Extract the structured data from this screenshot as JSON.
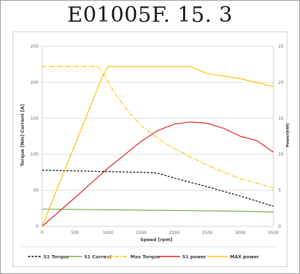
{
  "chart_data": {
    "type": "line",
    "title": "E01005F. 15. 3",
    "xlabel": "Speed  [rpm]",
    "ylabel_left": "Torque  [Nm] Current  [A]",
    "ylabel_right": "Power[kW]",
    "xlim": [
      0,
      3500
    ],
    "ylim_left": [
      0,
      250
    ],
    "ylim_right": [
      0,
      25
    ],
    "x_ticks": [
      0,
      500,
      1000,
      1500,
      2000,
      2500,
      3000,
      3500
    ],
    "y_left_ticks": [
      0,
      50,
      100,
      150,
      200,
      250
    ],
    "y_right_ticks": [
      0,
      5,
      10,
      15,
      20,
      25
    ],
    "grid": "horizontal",
    "legend_position": "bottom",
    "series": [
      {
        "name": "S1 Torque",
        "axis": "left",
        "color": "#000000",
        "style": "dashed",
        "x": [
          0,
          500,
          1000,
          1500,
          1750,
          2000,
          2500,
          3000,
          3500
        ],
        "y": [
          78,
          77,
          76,
          75,
          74,
          67,
          55,
          42,
          28
        ]
      },
      {
        "name": "S1 Current",
        "axis": "left",
        "color": "#70ad47",
        "style": "solid",
        "x": [
          0,
          500,
          1000,
          1500,
          2000,
          2500,
          3000,
          3500
        ],
        "y": [
          24,
          23.5,
          23,
          22.5,
          22,
          21.5,
          21,
          20
        ]
      },
      {
        "name": "Max Torque",
        "axis": "left",
        "color": "#ffc000",
        "style": "dashdot",
        "x": [
          0,
          850,
          950,
          1100,
          1300,
          1500,
          1750,
          2000,
          2250,
          2500,
          2750,
          3000,
          3250,
          3500
        ],
        "y": [
          222,
          222,
          208,
          185,
          160,
          140,
          122,
          108,
          96,
          85,
          75,
          66,
          60,
          53
        ]
      },
      {
        "name": "S1 power",
        "axis": "right",
        "color": "#e31a1c",
        "style": "solid",
        "x": [
          0,
          500,
          1000,
          1500,
          1750,
          2000,
          2250,
          2500,
          2750,
          3000,
          3250,
          3500
        ],
        "y": [
          0,
          4,
          8.1,
          11.8,
          13.3,
          14.2,
          14.5,
          14.3,
          13.6,
          12.5,
          11.9,
          10.3
        ]
      },
      {
        "name": "MAX power",
        "axis": "right",
        "color": "#ffc000",
        "style": "solid",
        "x": [
          0,
          900,
          1000,
          1500,
          2000,
          2250,
          2500,
          3000,
          3500
        ],
        "y": [
          0,
          20.5,
          22.2,
          22.2,
          22.2,
          22.2,
          21.2,
          20.5,
          19.4
        ]
      }
    ]
  }
}
